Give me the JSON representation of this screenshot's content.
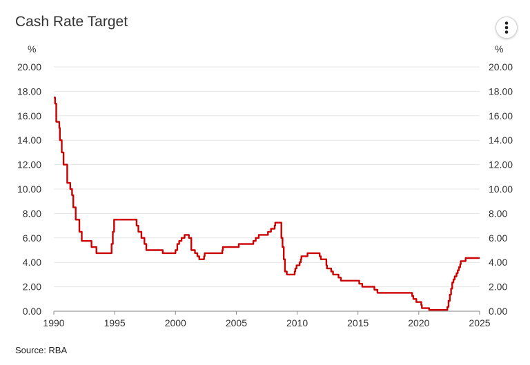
{
  "title": "Cash Rate Target",
  "source": "Source: RBA",
  "menu_icon": "more-vertical-icon",
  "colors": {
    "line": "#cc0000",
    "grid": "#e6e6e6",
    "axis": "#888888"
  },
  "chart_data": {
    "type": "line",
    "title": "Cash Rate Target",
    "ylabel": "%",
    "ylabel_right": "%",
    "xlabel": "",
    "ylim": [
      0,
      20
    ],
    "xlim": [
      1990,
      2025
    ],
    "y_ticks": [
      "0.00",
      "2.00",
      "4.00",
      "6.00",
      "8.00",
      "10.00",
      "12.00",
      "14.00",
      "16.00",
      "18.00",
      "20.00"
    ],
    "x_ticks": [
      "1990",
      "1995",
      "2000",
      "2005",
      "2010",
      "2015",
      "2020",
      "2025"
    ],
    "step": true,
    "grid": true,
    "legend": "none",
    "points": [
      [
        1990.0,
        17.5
      ],
      [
        1990.1,
        17.0
      ],
      [
        1990.2,
        15.5
      ],
      [
        1990.45,
        15.0
      ],
      [
        1990.5,
        14.0
      ],
      [
        1990.65,
        13.0
      ],
      [
        1990.8,
        12.0
      ],
      [
        1991.0,
        12.0
      ],
      [
        1991.1,
        10.5
      ],
      [
        1991.35,
        10.0
      ],
      [
        1991.5,
        9.5
      ],
      [
        1991.6,
        8.5
      ],
      [
        1991.8,
        7.5
      ],
      [
        1991.95,
        7.5
      ],
      [
        1992.1,
        6.5
      ],
      [
        1992.3,
        5.75
      ],
      [
        1992.9,
        5.75
      ],
      [
        1993.1,
        5.25
      ],
      [
        1993.5,
        4.75
      ],
      [
        1994.6,
        4.75
      ],
      [
        1994.75,
        5.5
      ],
      [
        1994.85,
        6.5
      ],
      [
        1994.95,
        7.5
      ],
      [
        1996.55,
        7.5
      ],
      [
        1996.8,
        7.0
      ],
      [
        1996.95,
        6.5
      ],
      [
        1997.2,
        6.0
      ],
      [
        1997.45,
        5.5
      ],
      [
        1997.6,
        5.0
      ],
      [
        1998.9,
        5.0
      ],
      [
        1998.95,
        4.75
      ],
      [
        1999.85,
        4.75
      ],
      [
        2000.0,
        5.0
      ],
      [
        2000.15,
        5.5
      ],
      [
        2000.3,
        5.75
      ],
      [
        2000.5,
        6.0
      ],
      [
        2000.75,
        6.25
      ],
      [
        2001.1,
        6.0
      ],
      [
        2001.3,
        5.0
      ],
      [
        2001.6,
        4.75
      ],
      [
        2001.8,
        4.5
      ],
      [
        2001.95,
        4.25
      ],
      [
        2002.35,
        4.5
      ],
      [
        2002.4,
        4.75
      ],
      [
        2003.85,
        5.0
      ],
      [
        2003.9,
        5.25
      ],
      [
        2005.2,
        5.5
      ],
      [
        2006.4,
        5.75
      ],
      [
        2006.6,
        6.0
      ],
      [
        2006.85,
        6.25
      ],
      [
        2007.6,
        6.5
      ],
      [
        2007.85,
        6.75
      ],
      [
        2008.15,
        7.0
      ],
      [
        2008.2,
        7.25
      ],
      [
        2008.7,
        6.0
      ],
      [
        2008.8,
        5.25
      ],
      [
        2008.9,
        4.25
      ],
      [
        2009.0,
        3.25
      ],
      [
        2009.15,
        3.0
      ],
      [
        2009.8,
        3.25
      ],
      [
        2009.85,
        3.5
      ],
      [
        2009.95,
        3.75
      ],
      [
        2010.2,
        4.0
      ],
      [
        2010.3,
        4.25
      ],
      [
        2010.35,
        4.5
      ],
      [
        2010.85,
        4.75
      ],
      [
        2011.85,
        4.5
      ],
      [
        2011.95,
        4.25
      ],
      [
        2012.4,
        3.75
      ],
      [
        2012.45,
        3.5
      ],
      [
        2012.8,
        3.25
      ],
      [
        2012.95,
        3.0
      ],
      [
        2013.4,
        2.75
      ],
      [
        2013.6,
        2.5
      ],
      [
        2015.1,
        2.25
      ],
      [
        2015.35,
        2.0
      ],
      [
        2016.35,
        1.75
      ],
      [
        2016.6,
        1.5
      ],
      [
        2019.45,
        1.25
      ],
      [
        2019.55,
        1.0
      ],
      [
        2019.8,
        0.75
      ],
      [
        2020.2,
        0.5
      ],
      [
        2020.25,
        0.25
      ],
      [
        2020.85,
        0.1
      ],
      [
        2022.35,
        0.35
      ],
      [
        2022.45,
        0.85
      ],
      [
        2022.55,
        1.35
      ],
      [
        2022.65,
        1.85
      ],
      [
        2022.75,
        2.35
      ],
      [
        2022.85,
        2.6
      ],
      [
        2022.95,
        2.85
      ],
      [
        2023.1,
        3.1
      ],
      [
        2023.2,
        3.35
      ],
      [
        2023.3,
        3.6
      ],
      [
        2023.4,
        3.85
      ],
      [
        2023.45,
        4.1
      ],
      [
        2023.85,
        4.35
      ],
      [
        2025.0,
        4.35
      ]
    ]
  }
}
